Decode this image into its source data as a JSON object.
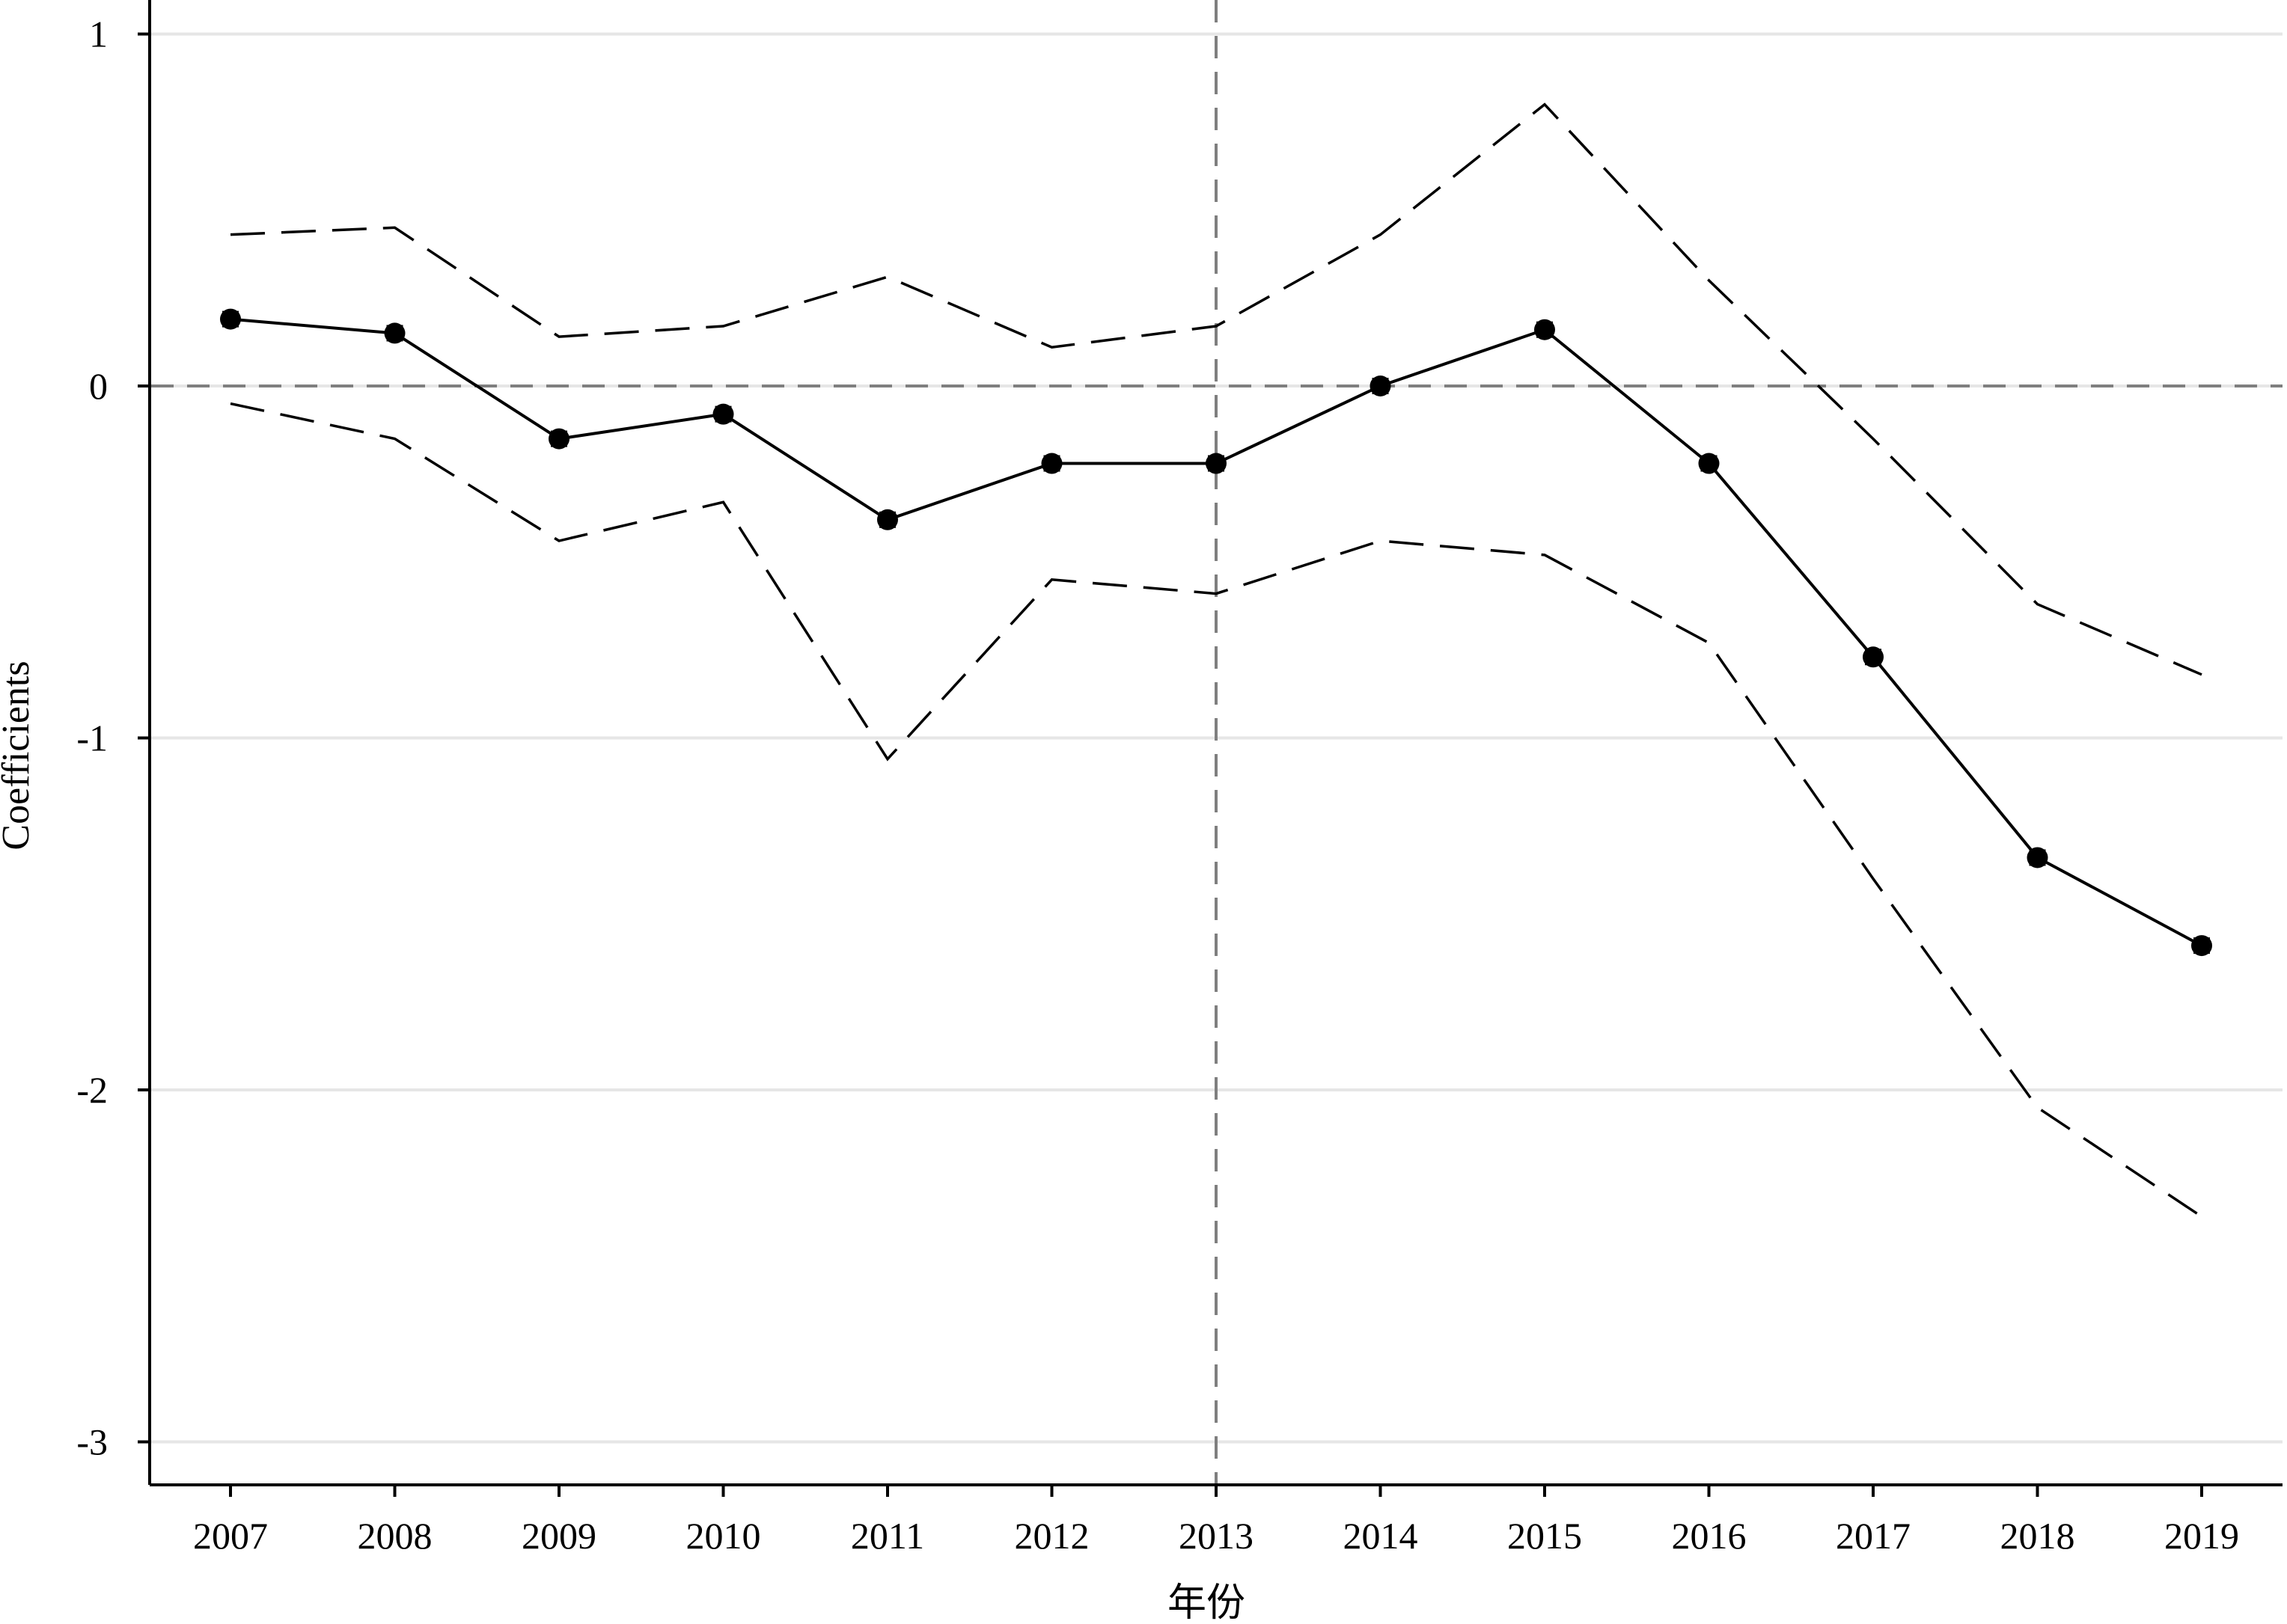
{
  "chart_data": {
    "type": "line",
    "title": "",
    "xlabel": "年份",
    "ylabel": "Coefficients",
    "x": [
      "2007",
      "2008",
      "2009",
      "2010",
      "2011",
      "2012",
      "2013",
      "2014",
      "2015",
      "2016",
      "2017",
      "2018",
      "2019"
    ],
    "y_ticks": [
      "1",
      "0",
      "-1",
      "-2",
      "-3"
    ],
    "y_tick_values": [
      1,
      0,
      -1,
      -2,
      -3
    ],
    "ylim": [
      -3.1,
      1.05
    ],
    "grid": true,
    "reference_lines": {
      "y": 0,
      "x": "2013"
    },
    "series": [
      {
        "role": "upper_ci",
        "style": "dashed",
        "values": [
          0.43,
          0.45,
          0.14,
          0.17,
          0.31,
          0.11,
          0.17,
          0.43,
          0.8,
          0.3,
          -0.15,
          -0.62,
          -0.82
        ]
      },
      {
        "role": "coefficient",
        "style": "solid-markers",
        "values": [
          0.19,
          0.15,
          -0.15,
          -0.08,
          -0.38,
          -0.22,
          -0.22,
          0.0,
          0.16,
          -0.22,
          -0.77,
          -1.34,
          -1.59
        ]
      },
      {
        "role": "lower_ci",
        "style": "dashed",
        "values": [
          -0.05,
          -0.15,
          -0.44,
          -0.33,
          -1.06,
          -0.55,
          -0.59,
          -0.44,
          -0.48,
          -0.73,
          -1.4,
          -2.05,
          -2.36
        ]
      }
    ]
  }
}
